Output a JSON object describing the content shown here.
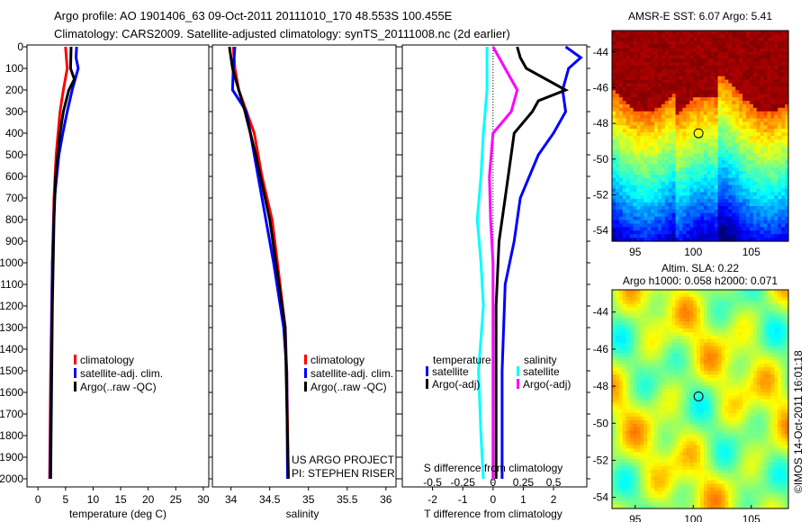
{
  "title_line1": "Argo profile: AO 1901406_63 09-Oct-2011 20111010_170 48.553S 100.455E",
  "title_line2": "Climatology: CARS2009. Satellite-adjusted climatology: synTS_20111008.nc (2d earlier)",
  "colors": {
    "climatology": "#ff0000",
    "satellite": "#0000ff",
    "argo": "#000000",
    "s_satellite": "#00ffff",
    "s_argo": "#ff00ff"
  },
  "chart_data": [
    {
      "type": "line",
      "id": "temperature",
      "xlabel": "temperature (deg C)",
      "ylabel": "",
      "xlim": [
        -2,
        31
      ],
      "ylim": [
        2040,
        0
      ],
      "xticks": [
        0,
        5,
        10,
        15,
        20,
        25,
        30
      ],
      "yticks": [
        0,
        100,
        200,
        300,
        400,
        500,
        600,
        700,
        800,
        900,
        1000,
        1100,
        1200,
        1300,
        1400,
        1500,
        1600,
        1700,
        1800,
        1900,
        2000
      ],
      "legend": [
        "climatology",
        "satellite-adj. clim.",
        "Argo(..raw -QC)"
      ],
      "legend_position": "bottom-center",
      "series": [
        {
          "name": "climatology",
          "color": "#ff0000",
          "depth": [
            0,
            100,
            200,
            300,
            500,
            700,
            1000,
            1500,
            2000
          ],
          "values": [
            5.0,
            5.3,
            4.6,
            4.0,
            3.3,
            2.9,
            2.6,
            2.3,
            2.1
          ]
        },
        {
          "name": "satellite-adj. clim.",
          "color": "#0000ff",
          "depth": [
            0,
            50,
            100,
            200,
            300,
            400,
            500,
            700,
            1000,
            1500,
            2000
          ],
          "values": [
            7.0,
            6.9,
            7.3,
            6.2,
            5.3,
            4.5,
            3.8,
            3.0,
            2.6,
            2.4,
            2.2
          ]
        },
        {
          "name": "Argo(..raw -QC)",
          "color": "#000000",
          "depth": [
            0,
            100,
            150,
            200,
            300,
            400,
            600,
            800,
            1200,
            2000
          ],
          "values": [
            6.0,
            5.9,
            6.6,
            5.6,
            4.6,
            4.0,
            3.2,
            2.9,
            2.6,
            2.3
          ]
        }
      ]
    },
    {
      "type": "line",
      "id": "salinity",
      "xlabel": "salinity",
      "xlim": [
        33.76,
        36.13
      ],
      "ylim": [
        2040,
        0
      ],
      "xticks": [
        34,
        34.5,
        35,
        35.5,
        36
      ],
      "legend": [
        "climatology",
        "satellite-adj. clim.",
        "Argo(..raw -QC)"
      ],
      "legend_position": "bottom-right",
      "annotation": [
        "US ARGO PROJECT",
        "PI: STEPHEN RISER"
      ],
      "series": [
        {
          "name": "climatology",
          "color": "#ff0000",
          "depth": [
            0,
            100,
            200,
            300,
            400,
            600,
            800,
            1000,
            1300,
            1500,
            2000
          ],
          "values": [
            34.03,
            34.05,
            34.1,
            34.2,
            34.3,
            34.4,
            34.53,
            34.6,
            34.7,
            34.72,
            34.74
          ]
        },
        {
          "name": "satellite-adj. clim.",
          "color": "#0000ff",
          "depth": [
            0,
            100,
            200,
            300,
            500,
            800,
            1000,
            1300,
            1500,
            2000
          ],
          "values": [
            34.05,
            34.03,
            34.02,
            34.2,
            34.3,
            34.45,
            34.55,
            34.68,
            34.72,
            34.73
          ]
        },
        {
          "name": "Argo(..raw -QC)",
          "color": "#000000",
          "depth": [
            0,
            100,
            200,
            300,
            500,
            800,
            1000,
            1300,
            2000
          ],
          "values": [
            33.98,
            34.02,
            34.1,
            34.18,
            34.32,
            34.5,
            34.58,
            34.7,
            34.74
          ]
        }
      ]
    },
    {
      "type": "line",
      "id": "difference",
      "xlabel": "T difference from climatology",
      "x2label": "S difference from climatology",
      "xlim": [
        -3,
        3.1
      ],
      "ylim": [
        2040,
        0
      ],
      "xticks": [
        -2,
        -1,
        0,
        1,
        2
      ],
      "x2ticks": [
        "-0.5",
        "-0.25",
        "0",
        "0.25",
        "0.5"
      ],
      "s_scale": 0.25,
      "legend_titles": [
        "temperature",
        "salinity"
      ],
      "legend": [
        "satellite",
        "Argo(-adj)",
        "satellite",
        "Argo(-adj)"
      ],
      "series": [
        {
          "name": "T satellite",
          "color": "#0000ff",
          "depth": [
            0,
            50,
            100,
            200,
            300,
            400,
            500,
            700,
            900,
            1100,
            1500,
            2000
          ],
          "values": [
            2.4,
            2.9,
            2.5,
            2.3,
            2.4,
            2.0,
            1.5,
            0.9,
            0.7,
            0.4,
            0.3,
            0.3
          ]
        },
        {
          "name": "T Argo(-adj)",
          "color": "#000000",
          "depth": [
            0,
            50,
            100,
            200,
            250,
            300,
            400,
            500,
            700,
            900,
            1200,
            2000
          ],
          "values": [
            0.8,
            0.9,
            1.1,
            2.4,
            1.5,
            1.3,
            0.7,
            0.6,
            0.4,
            0.2,
            0.1,
            0.1
          ]
        },
        {
          "name": "S satellite",
          "color": "#00ffff",
          "depth": [
            0,
            200,
            400,
            600,
            800,
            1000,
            1200,
            1500,
            1800,
            2000
          ],
          "values": [
            -0.05,
            -0.05,
            -0.08,
            -0.1,
            -0.13,
            -0.1,
            -0.08,
            -0.12,
            -0.1,
            -0.08
          ]
        },
        {
          "name": "S Argo(-adj)",
          "color": "#ff00ff",
          "depth": [
            0,
            200,
            300,
            400,
            600,
            800,
            1000,
            1500,
            2000
          ],
          "values": [
            0.0,
            0.2,
            0.15,
            0.0,
            -0.03,
            -0.02,
            0.0,
            0.0,
            0.0
          ]
        }
      ]
    },
    {
      "type": "heatmap",
      "id": "sst_map",
      "title": "AMSR-E SST: 6.07 Argo: 5.41",
      "xlim": [
        93,
        108.2
      ],
      "ylim": [
        -54.6,
        -42.8
      ],
      "xticks": [
        "95",
        "100",
        "105"
      ],
      "yticks": [
        "-44",
        "-46",
        "-48",
        "-50",
        "-52",
        "-54"
      ],
      "marker": {
        "lon": 100.455,
        "lat": -48.553
      }
    },
    {
      "type": "heatmap",
      "id": "sla_map",
      "title": "Altim. SLA: 0.22",
      "subtitle": "Argo h1000: 0.058 h2000: 0.071",
      "xlim": [
        93,
        108.2
      ],
      "ylim": [
        -54.6,
        -42.8
      ],
      "xticks": [
        "95",
        "100",
        "105"
      ],
      "yticks": [
        "-44",
        "-46",
        "-48",
        "-50",
        "-52",
        "-54"
      ],
      "marker": {
        "lon": 100.455,
        "lat": -48.553
      }
    }
  ],
  "credit": "©IMOS 14-Oct-2011 16:01:18"
}
